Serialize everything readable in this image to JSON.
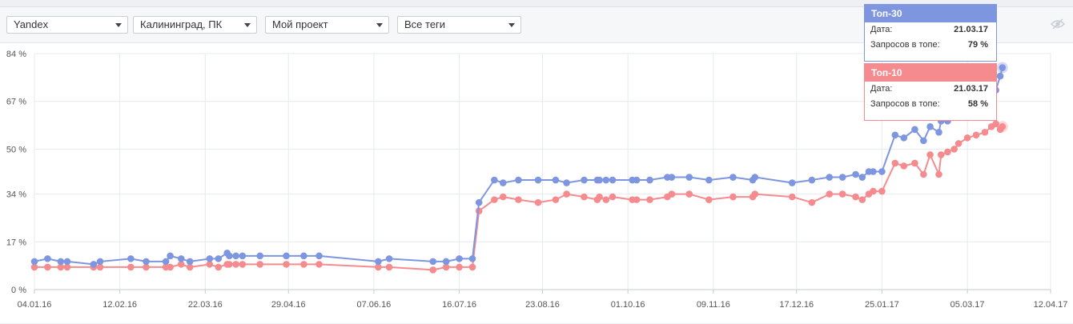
{
  "filters": {
    "engine": "Yandex",
    "region": "Калининград, ПК",
    "project": "Мой проект",
    "tags": "Все теги"
  },
  "icons": {
    "visibility": "eye-crossed-icon",
    "dropdown": "caret-down-icon"
  },
  "colors": {
    "top30": "#7e96e0",
    "top10": "#f58b8e",
    "grid": "#e6e9ee"
  },
  "tooltips": {
    "top30": {
      "title": "Топ-30",
      "date_label": "Дата:",
      "date": "21.03.17",
      "count_label": "Запросов в топе:",
      "value": "79 %"
    },
    "top10": {
      "title": "Топ-10",
      "date_label": "Дата:",
      "date": "21.03.17",
      "count_label": "Запросов в топе:",
      "value": "58 %"
    }
  },
  "chart_data": {
    "type": "line",
    "title": "",
    "xlabel": "",
    "ylabel": "",
    "ylim": [
      0,
      84
    ],
    "y_ticks": [
      "0 %",
      "17 %",
      "34 %",
      "50 %",
      "67 %",
      "84 %"
    ],
    "x_ticks": [
      "04.01.16",
      "12.02.16",
      "22.03.16",
      "29.04.16",
      "07.06.16",
      "16.07.16",
      "23.08.16",
      "01.10.16",
      "09.11.16",
      "17.12.16",
      "25.01.17",
      "05.03.17",
      "12.04.17"
    ],
    "x_range": [
      "04.01.16",
      "12.04.17"
    ],
    "grid": true,
    "legend": "none",
    "series": [
      {
        "name": "Топ-30",
        "color": "#7e96e0",
        "points": [
          [
            "04.01.16",
            10
          ],
          [
            "10.01.16",
            11
          ],
          [
            "16.01.16",
            10
          ],
          [
            "19.01.16",
            10
          ],
          [
            "31.01.16",
            9
          ],
          [
            "03.02.16",
            10
          ],
          [
            "17.02.16",
            11
          ],
          [
            "24.02.16",
            10
          ],
          [
            "04.03.16",
            10
          ],
          [
            "06.03.16",
            12
          ],
          [
            "11.03.16",
            11
          ],
          [
            "15.03.16",
            10
          ],
          [
            "24.03.16",
            11
          ],
          [
            "28.03.16",
            11
          ],
          [
            "01.04.16",
            13
          ],
          [
            "02.04.16",
            12
          ],
          [
            "05.04.16",
            12
          ],
          [
            "08.04.16",
            12
          ],
          [
            "16.04.16",
            12
          ],
          [
            "28.04.16",
            12
          ],
          [
            "06.05.16",
            12
          ],
          [
            "13.05.16",
            12
          ],
          [
            "09.06.16",
            10
          ],
          [
            "14.06.16",
            11
          ],
          [
            "04.07.16",
            10
          ],
          [
            "10.07.16",
            10
          ],
          [
            "16.07.16",
            11
          ],
          [
            "22.07.16",
            11
          ],
          [
            "25.07.16",
            31
          ],
          [
            "01.08.16",
            39
          ],
          [
            "05.08.16",
            38
          ],
          [
            "12.08.16",
            39
          ],
          [
            "21.08.16",
            39
          ],
          [
            "29.08.16",
            39
          ],
          [
            "03.09.16",
            38
          ],
          [
            "11.09.16",
            39
          ],
          [
            "17.09.16",
            39
          ],
          [
            "18.09.16",
            39
          ],
          [
            "21.09.16",
            39
          ],
          [
            "24.09.16",
            39
          ],
          [
            "03.10.16",
            39
          ],
          [
            "05.10.16",
            39
          ],
          [
            "11.10.16",
            39
          ],
          [
            "19.10.16",
            40
          ],
          [
            "21.10.16",
            40
          ],
          [
            "29.10.16",
            40
          ],
          [
            "07.11.16",
            39
          ],
          [
            "18.11.16",
            40
          ],
          [
            "27.11.16",
            39
          ],
          [
            "28.11.16",
            40
          ],
          [
            "15.12.16",
            38
          ],
          [
            "24.12.16",
            39
          ],
          [
            "01.01.17",
            40
          ],
          [
            "07.01.17",
            40
          ],
          [
            "13.01.17",
            41
          ],
          [
            "16.01.17",
            40
          ],
          [
            "19.01.17",
            42
          ],
          [
            "21.01.17",
            42
          ],
          [
            "25.01.17",
            42
          ],
          [
            "31.01.17",
            55
          ],
          [
            "04.02.17",
            54
          ],
          [
            "09.02.17",
            57
          ],
          [
            "13.02.17",
            53
          ],
          [
            "16.02.17",
            58
          ],
          [
            "20.02.17",
            56
          ],
          [
            "21.02.17",
            60
          ],
          [
            "24.02.17",
            60
          ],
          [
            "27.02.17",
            62
          ],
          [
            "01.03.17",
            63
          ],
          [
            "05.03.17",
            65
          ],
          [
            "09.03.17",
            66
          ],
          [
            "13.03.17",
            68
          ],
          [
            "16.03.17",
            70
          ],
          [
            "18.03.17",
            71
          ],
          [
            "20.03.17",
            76
          ],
          [
            "21.03.17",
            79
          ]
        ]
      },
      {
        "name": "Топ-10",
        "color": "#f58b8e",
        "points": [
          [
            "04.01.16",
            8
          ],
          [
            "10.01.16",
            8
          ],
          [
            "16.01.16",
            8
          ],
          [
            "19.01.16",
            8
          ],
          [
            "31.01.16",
            8
          ],
          [
            "03.02.16",
            8
          ],
          [
            "17.02.16",
            8
          ],
          [
            "24.02.16",
            8
          ],
          [
            "04.03.16",
            8
          ],
          [
            "06.03.16",
            8
          ],
          [
            "11.03.16",
            9
          ],
          [
            "15.03.16",
            8
          ],
          [
            "24.03.16",
            9
          ],
          [
            "28.03.16",
            8
          ],
          [
            "01.04.16",
            9
          ],
          [
            "02.04.16",
            9
          ],
          [
            "05.04.16",
            9
          ],
          [
            "08.04.16",
            9
          ],
          [
            "16.04.16",
            9
          ],
          [
            "28.04.16",
            9
          ],
          [
            "06.05.16",
            9
          ],
          [
            "13.05.16",
            9
          ],
          [
            "09.06.16",
            8
          ],
          [
            "14.06.16",
            8
          ],
          [
            "04.07.16",
            7
          ],
          [
            "10.07.16",
            8
          ],
          [
            "16.07.16",
            8
          ],
          [
            "22.07.16",
            8
          ],
          [
            "25.07.16",
            28
          ],
          [
            "01.08.16",
            32
          ],
          [
            "05.08.16",
            33
          ],
          [
            "12.08.16",
            32
          ],
          [
            "21.08.16",
            31
          ],
          [
            "29.08.16",
            32
          ],
          [
            "03.09.16",
            34
          ],
          [
            "11.09.16",
            33
          ],
          [
            "17.09.16",
            32
          ],
          [
            "18.09.16",
            33
          ],
          [
            "21.09.16",
            32
          ],
          [
            "24.09.16",
            33
          ],
          [
            "03.10.16",
            32
          ],
          [
            "05.10.16",
            32
          ],
          [
            "11.10.16",
            32
          ],
          [
            "19.10.16",
            33
          ],
          [
            "21.10.16",
            34
          ],
          [
            "29.10.16",
            34
          ],
          [
            "07.11.16",
            32
          ],
          [
            "18.11.16",
            33
          ],
          [
            "27.11.16",
            33
          ],
          [
            "28.11.16",
            34
          ],
          [
            "15.12.16",
            33
          ],
          [
            "24.12.16",
            31
          ],
          [
            "01.01.17",
            34
          ],
          [
            "07.01.17",
            34
          ],
          [
            "13.01.17",
            33
          ],
          [
            "16.01.17",
            32
          ],
          [
            "19.01.17",
            34
          ],
          [
            "21.01.17",
            35
          ],
          [
            "25.01.17",
            35
          ],
          [
            "31.01.17",
            45
          ],
          [
            "04.02.17",
            44
          ],
          [
            "09.02.17",
            45
          ],
          [
            "13.02.17",
            41
          ],
          [
            "16.02.17",
            48
          ],
          [
            "20.02.17",
            41
          ],
          [
            "21.02.17",
            48
          ],
          [
            "24.02.17",
            49
          ],
          [
            "27.02.17",
            50
          ],
          [
            "01.03.17",
            52
          ],
          [
            "05.03.17",
            54
          ],
          [
            "09.03.17",
            55
          ],
          [
            "13.03.17",
            56
          ],
          [
            "16.03.17",
            58
          ],
          [
            "18.03.17",
            59
          ],
          [
            "20.03.17",
            57
          ],
          [
            "21.03.17",
            58
          ]
        ]
      }
    ]
  }
}
